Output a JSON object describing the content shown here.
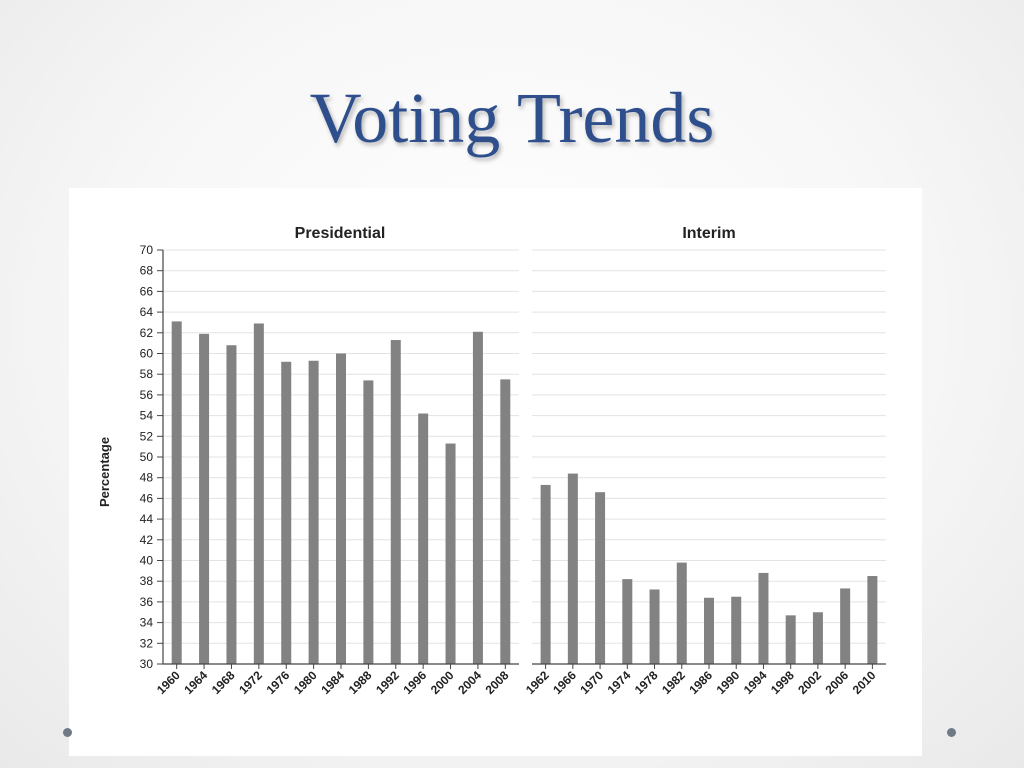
{
  "slide": {
    "title": "Voting Trends"
  },
  "chart_data": [
    {
      "type": "bar",
      "title": "Presidential",
      "ylabel": "Percentage",
      "xlabel": "",
      "ylim": [
        30,
        70
      ],
      "yticks": [
        30,
        32,
        34,
        36,
        38,
        40,
        42,
        44,
        46,
        48,
        50,
        52,
        54,
        56,
        58,
        60,
        62,
        64,
        66,
        68,
        70
      ],
      "grid": true,
      "categories": [
        "1960",
        "1964",
        "1968",
        "1972",
        "1976",
        "1980",
        "1984",
        "1988",
        "1992",
        "1996",
        "2000",
        "2004",
        "2008"
      ],
      "values": [
        63.1,
        61.9,
        60.8,
        62.9,
        59.2,
        59.3,
        60.0,
        57.4,
        61.3,
        54.2,
        51.3,
        62.1,
        57.5
      ],
      "bar_color": "#828282"
    },
    {
      "type": "bar",
      "title": "Interim",
      "ylabel": "",
      "xlabel": "",
      "ylim": [
        30,
        70
      ],
      "grid": true,
      "categories": [
        "1962",
        "1966",
        "1970",
        "1974",
        "1978",
        "1982",
        "1986",
        "1990",
        "1994",
        "1998",
        "2002",
        "2006",
        "2010"
      ],
      "values": [
        47.3,
        48.4,
        46.6,
        38.2,
        37.2,
        39.8,
        36.4,
        36.5,
        38.8,
        34.7,
        35.0,
        37.3,
        38.5
      ],
      "bar_color": "#828282"
    }
  ]
}
